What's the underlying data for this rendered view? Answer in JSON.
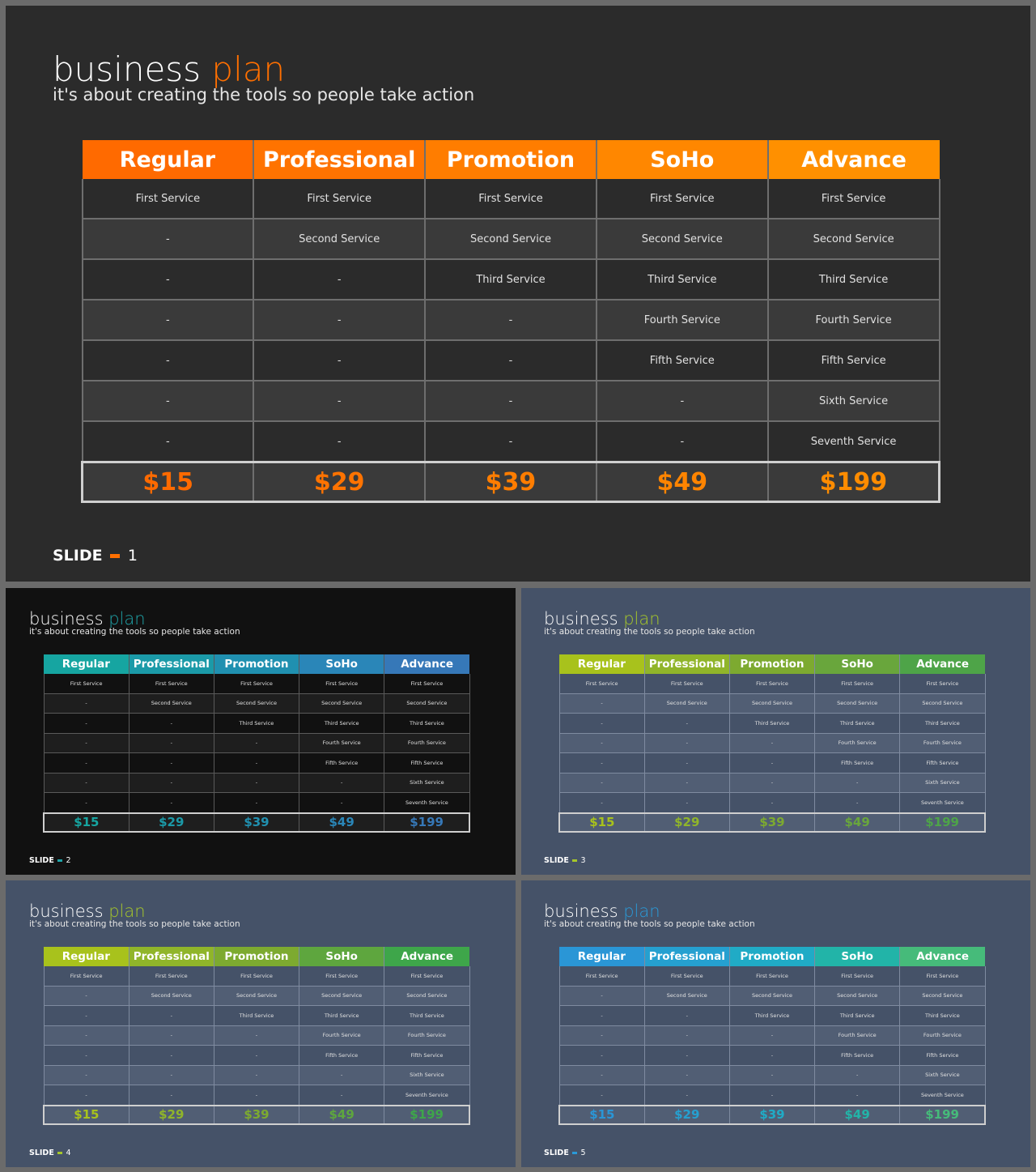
{
  "tiers": [
    "Regular",
    "Professional",
    "Promotion",
    "SoHo",
    "Advance"
  ],
  "rows": [
    [
      "First Service",
      "First Service",
      "First Service",
      "First Service",
      "First Service"
    ],
    [
      "-",
      "Second Service",
      "Second Service",
      "Second Service",
      "Second Service"
    ],
    [
      "-",
      "-",
      "Third Service",
      "Third Service",
      "Third Service"
    ],
    [
      "-",
      "-",
      "-",
      "Fourth Service",
      "Fourth Service"
    ],
    [
      "-",
      "-",
      "-",
      "Fifth Service",
      "Fifth Service"
    ],
    [
      "-",
      "-",
      "-",
      "-",
      "Sixth Service"
    ],
    [
      "-",
      "-",
      "-",
      "-",
      "Seventh Service"
    ]
  ],
  "prices": [
    "$15",
    "$29",
    "$39",
    "$49",
    "$199"
  ],
  "slides": [
    {
      "title_word": "business",
      "title_accent": "plan",
      "subtitle": "it's about creating the tools so people take action",
      "slide_label": "SLIDE",
      "slide_number": "1",
      "colors": {
        "background": "#2b2b2b",
        "row_dark": "#2b2b2b",
        "row_light": "#3a3a3a",
        "grid": "#6e6e6e",
        "accent": "#ff6f00",
        "headers": [
          "#ff6a00",
          "#ff7300",
          "#ff7d00",
          "#ff8700",
          "#ff9000"
        ],
        "prices": [
          "#ff6a00",
          "#ff7300",
          "#ff7d00",
          "#ff8400",
          "#ff8c00"
        ]
      }
    },
    {
      "title_word": "business",
      "title_accent": "plan",
      "subtitle": "it's about creating the tools so people take action",
      "slide_label": "SLIDE",
      "slide_number": "2",
      "colors": {
        "background": "#111111",
        "row_dark": "#111111",
        "row_light": "#1e1e1e",
        "grid": "#5a5a5a",
        "accent": "#1fa3a8",
        "headers": [
          "#16a5a1",
          "#1b9aa8",
          "#2090b0",
          "#2a86b8",
          "#3678b8"
        ],
        "prices": [
          "#16a5a1",
          "#1b9aa8",
          "#2090b0",
          "#2a86b8",
          "#3678b8"
        ]
      }
    },
    {
      "title_word": "business",
      "title_accent": "plan",
      "subtitle": "it's about creating the tools so people take action",
      "slide_label": "SLIDE",
      "slide_number": "3",
      "colors": {
        "background": "#455268",
        "row_dark": "#455268",
        "row_light": "#515e74",
        "grid": "#7f8ba0",
        "accent": "#a6c72a",
        "headers": [
          "#a8c21c",
          "#90b52a",
          "#7daa30",
          "#69a63c",
          "#4ea448"
        ],
        "prices": [
          "#a8c21c",
          "#90b52a",
          "#7daa30",
          "#69a63c",
          "#4ea448"
        ]
      }
    },
    {
      "title_word": "business",
      "title_accent": "plan",
      "subtitle": "it's about creating the tools so people take action",
      "slide_label": "SLIDE",
      "slide_number": "4",
      "colors": {
        "background": "#455268",
        "row_dark": "#455268",
        "row_light": "#515e74",
        "grid": "#7f8ba0",
        "accent": "#a6c72a",
        "headers": [
          "#a8c21c",
          "#90b52a",
          "#7daa30",
          "#5ea63e",
          "#3ea64a"
        ],
        "prices": [
          "#a8c21c",
          "#90b52a",
          "#7daa30",
          "#5ea63e",
          "#3ea64a"
        ]
      }
    },
    {
      "title_word": "business",
      "title_accent": "plan",
      "subtitle": "it's about creating the tools so people take action",
      "slide_label": "SLIDE",
      "slide_number": "5",
      "colors": {
        "background": "#455268",
        "row_dark": "#455268",
        "row_light": "#515e74",
        "grid": "#7f8ba0",
        "accent": "#2a9ad8",
        "headers": [
          "#2a96d6",
          "#25a0d0",
          "#20abc6",
          "#22b4a8",
          "#46bb7a"
        ],
        "prices": [
          "#2a96d6",
          "#25a0d0",
          "#20abc6",
          "#22b4a8",
          "#46bb7a"
        ]
      }
    }
  ]
}
